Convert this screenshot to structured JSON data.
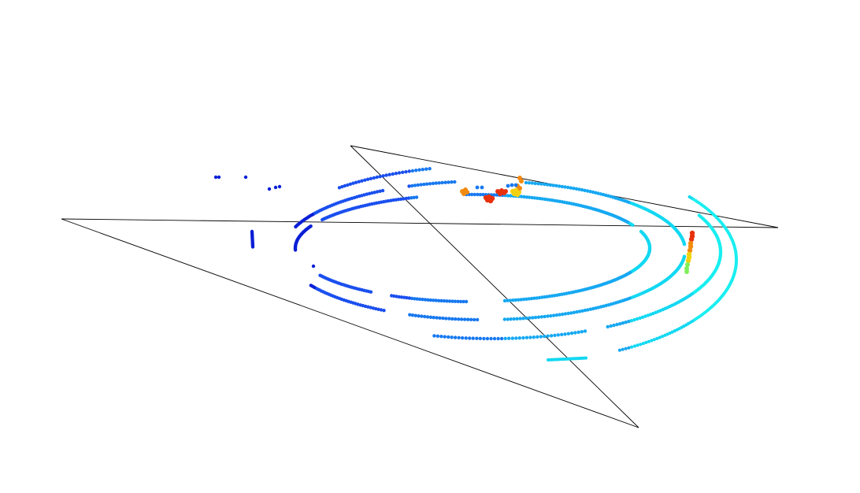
{
  "scene": {
    "kind": "lidar-point-cloud-3d-view",
    "background": "#ffffff",
    "frame_line_color": "#000000",
    "colormap": "jet",
    "colors": {
      "dark_blue": "#0a1fd6",
      "blue": "#1a4fee",
      "mid_blue": "#1778f0",
      "light_blue": "#16a8f2",
      "cyan": "#12d8f2",
      "aqua": "#19eef0",
      "yellow": "#f2d20e",
      "orange": "#f28a0e",
      "red": "#e8300c",
      "green": "#7ef05a"
    }
  }
}
